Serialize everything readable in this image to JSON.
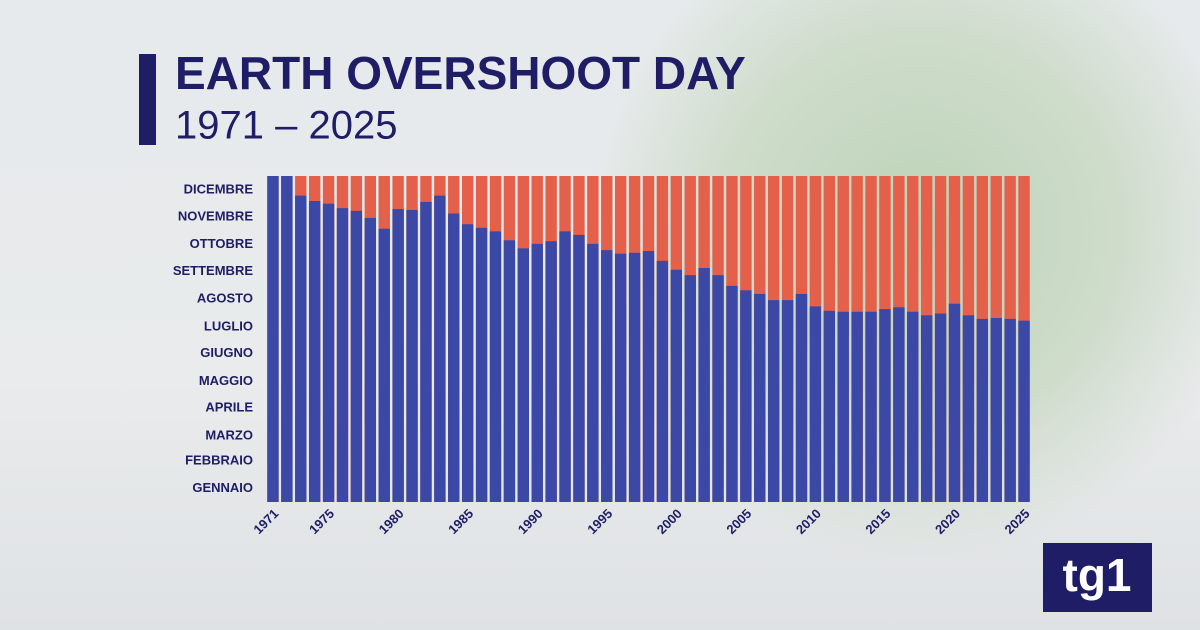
{
  "chart_data": {
    "type": "bar",
    "title": "EARTH OVERSHOOT DAY",
    "subtitle": "1971 – 2025",
    "logo": "tg1",
    "x": [
      1971,
      1972,
      1973,
      1974,
      1975,
      1976,
      1977,
      1978,
      1979,
      1980,
      1981,
      1982,
      1983,
      1984,
      1985,
      1986,
      1987,
      1988,
      1989,
      1990,
      1991,
      1992,
      1993,
      1994,
      1995,
      1996,
      1997,
      1998,
      1999,
      2000,
      2001,
      2002,
      2003,
      2004,
      2005,
      2006,
      2007,
      2008,
      2009,
      2010,
      2011,
      2012,
      2013,
      2014,
      2015,
      2016,
      2017,
      2018,
      2019,
      2020,
      2021,
      2022,
      2023,
      2024,
      2025
    ],
    "values": [
      365,
      365,
      343,
      337,
      334,
      329,
      326,
      318,
      306,
      328,
      327,
      336,
      343,
      323,
      311,
      307,
      303,
      293,
      284,
      289,
      292,
      303,
      299,
      289,
      282,
      278,
      279,
      281,
      270,
      260,
      254,
      262,
      254,
      242,
      237,
      233,
      226,
      226,
      233,
      219,
      214,
      213,
      213,
      213,
      216,
      218,
      213,
      209,
      211,
      222,
      209,
      205,
      206,
      205,
      203
    ],
    "color": "#3b48a6",
    "remainder_color": "#e4604b",
    "xlim": [
      1970.5,
      2025.5
    ],
    "xticks": [
      1971,
      1975,
      1980,
      1985,
      1990,
      1995,
      2000,
      2005,
      2010,
      2015,
      2020,
      2025
    ],
    "ylim": [
      0,
      365
    ],
    "yticks": [
      {
        "value": 15,
        "label": "GENNAIO"
      },
      {
        "value": 46,
        "label": "FEBBRAIO"
      },
      {
        "value": 74,
        "label": "MARZO"
      },
      {
        "value": 105,
        "label": "APRILE"
      },
      {
        "value": 135,
        "label": "MAGGIO"
      },
      {
        "value": 166,
        "label": "GIUGNO"
      },
      {
        "value": 196,
        "label": "LUGLIO"
      },
      {
        "value": 227,
        "label": "AGOSTO"
      },
      {
        "value": 258,
        "label": "SETTEMBRE"
      },
      {
        "value": 288,
        "label": "OTTOBRE"
      },
      {
        "value": 319,
        "label": "NOVEMBRE"
      },
      {
        "value": 349,
        "label": "DICEMBRE"
      }
    ]
  }
}
